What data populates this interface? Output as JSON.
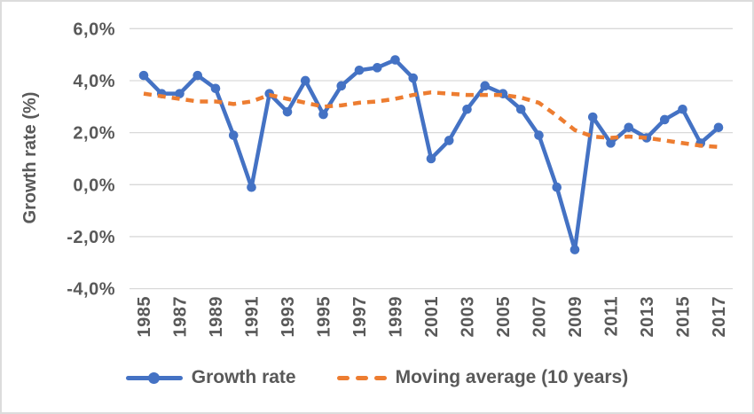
{
  "figure": {
    "border_color": "#dcdcdc",
    "background": "#ffffff",
    "text_color": "#595959",
    "gridline_color": "#d9d9d9"
  },
  "chart_data": {
    "type": "line",
    "title": "",
    "xlabel": "",
    "ylabel": "Growth rate (%)",
    "ylim": [
      -4,
      6
    ],
    "grid": "horizontal",
    "legend_position": "bottom",
    "x_tick_step": 2,
    "x": [
      1985,
      1986,
      1987,
      1988,
      1989,
      1990,
      1991,
      1992,
      1993,
      1994,
      1995,
      1996,
      1997,
      1998,
      1999,
      2000,
      2001,
      2002,
      2003,
      2004,
      2005,
      2006,
      2007,
      2008,
      2009,
      2010,
      2011,
      2012,
      2013,
      2014,
      2015,
      2016,
      2017
    ],
    "yticks": [
      {
        "value": 6,
        "label": "6,0%"
      },
      {
        "value": 4,
        "label": "4,0%"
      },
      {
        "value": 2,
        "label": "2,0%"
      },
      {
        "value": 0,
        "label": "0,0%"
      },
      {
        "value": -2,
        "label": "-2,0%"
      },
      {
        "value": -4,
        "label": "-4,0%"
      }
    ],
    "series": [
      {
        "id": "growth-rate",
        "name": "Growth rate",
        "color": "#4472C4",
        "style": "solid",
        "marker": "circle",
        "values": [
          4.2,
          3.5,
          3.5,
          4.2,
          3.7,
          1.9,
          -0.1,
          3.5,
          2.8,
          4.0,
          2.7,
          3.8,
          4.4,
          4.5,
          4.8,
          4.1,
          1.0,
          1.7,
          2.9,
          3.8,
          3.5,
          2.9,
          1.9,
          -0.1,
          -2.5,
          2.6,
          1.6,
          2.2,
          1.8,
          2.5,
          2.9,
          1.6,
          2.2
        ]
      },
      {
        "id": "moving-average",
        "name": "Moving average (10 years)",
        "color": "#ED7D31",
        "style": "dashed",
        "marker": "none",
        "values": [
          3.5,
          3.4,
          3.3,
          3.2,
          3.2,
          3.1,
          3.2,
          3.45,
          3.3,
          3.15,
          3.0,
          3.05,
          3.15,
          3.2,
          3.3,
          3.45,
          3.55,
          3.5,
          3.45,
          3.45,
          3.45,
          3.35,
          3.15,
          2.65,
          2.1,
          1.85,
          1.8,
          1.85,
          1.8,
          1.7,
          1.6,
          1.5,
          1.45
        ]
      }
    ]
  }
}
